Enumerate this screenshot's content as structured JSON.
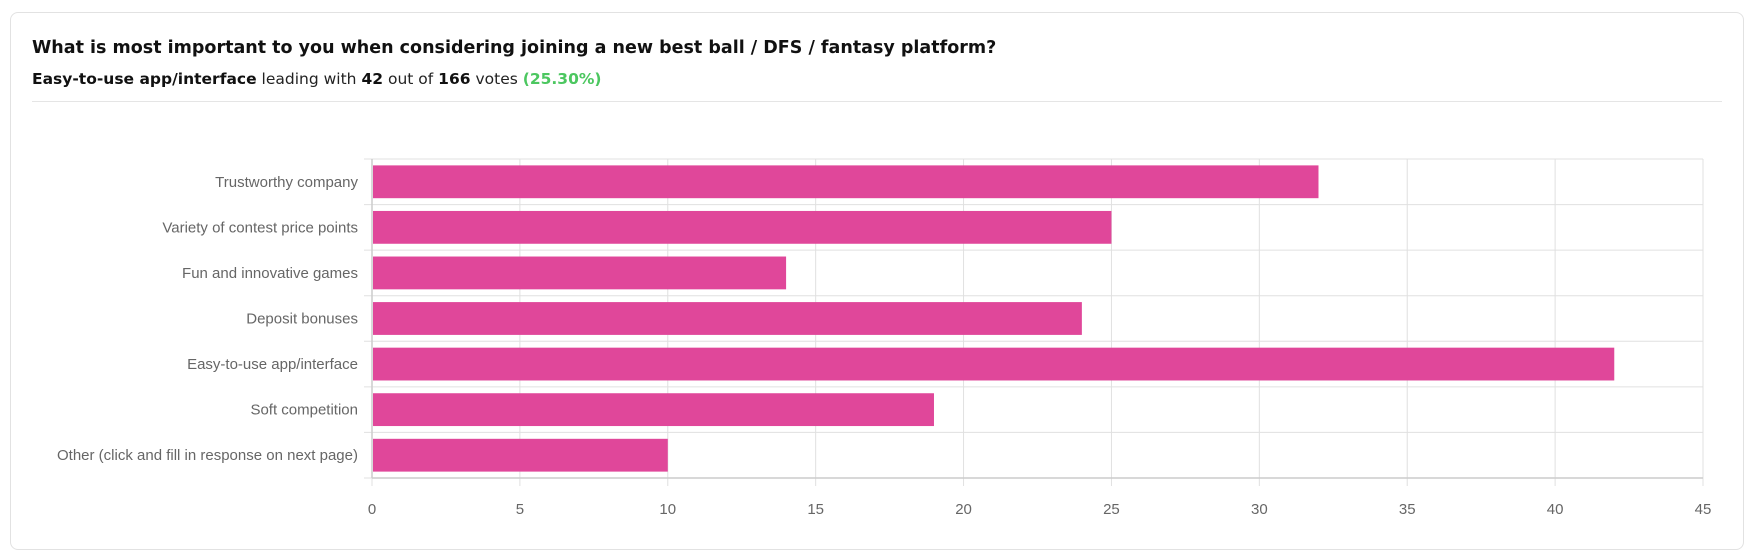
{
  "header": {
    "title": "What is most important to you when considering joining a new best ball / DFS / fantasy platform?",
    "leader": "Easy-to-use app/interface",
    "leading_text": "leading with",
    "leader_votes": "42",
    "out_of_text": "out of",
    "total_votes": "166",
    "votes_text": "votes",
    "percent": "(25.30%)"
  },
  "colors": {
    "bar": "#e0479a",
    "percent": "#4cc760",
    "grid": "#e0e0e0"
  },
  "chart_data": {
    "type": "bar",
    "orientation": "horizontal",
    "categories": [
      "Trustworthy company",
      "Variety of contest price points",
      "Fun and innovative games",
      "Deposit bonuses",
      "Easy-to-use app/interface",
      "Soft competition",
      "Other (click and fill in response on next page)"
    ],
    "values": [
      32,
      25,
      14,
      24,
      42,
      19,
      10
    ],
    "xlim": [
      0,
      45
    ],
    "xticks": [
      "0",
      "5",
      "10",
      "15",
      "20",
      "25",
      "30",
      "35",
      "40",
      "45"
    ],
    "grid": true,
    "title": "",
    "xlabel": "",
    "ylabel": ""
  }
}
